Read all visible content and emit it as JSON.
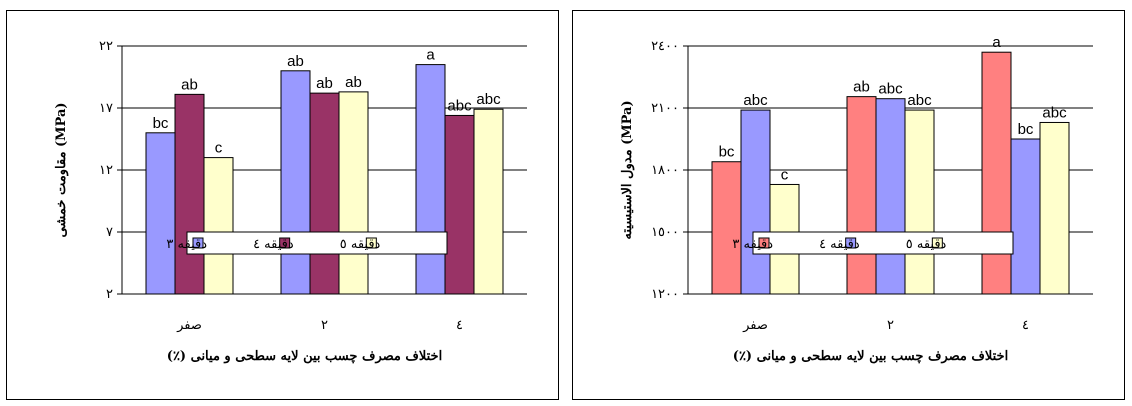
{
  "chart_data": [
    {
      "type": "bar",
      "ylabel": "مقاومت خمشی (MPa)",
      "xlabel": "اختلاف مصرف چسب بین لایه سطحی و میانی (٪)",
      "categories": [
        "صفر",
        "٢",
        "٤"
      ],
      "ylim": [
        2,
        22
      ],
      "yticks": [
        2,
        7,
        12,
        17,
        22
      ],
      "ytick_labels": [
        "٢",
        "٧",
        "١٢",
        "١٧",
        "٢٢"
      ],
      "grid": true,
      "legend_placement": "center",
      "series": [
        {
          "name": "دقیقه ٣",
          "color": "#9999ff",
          "values": [
            15.0,
            20.0,
            20.5
          ],
          "labels": [
            "bc",
            "ab",
            "a"
          ]
        },
        {
          "name": "دقیقه ٤",
          "color": "#993366",
          "values": [
            18.1,
            18.2,
            16.4
          ],
          "labels": [
            "ab",
            "ab",
            "abc"
          ]
        },
        {
          "name": "دقیقه ٥",
          "color": "#ffffcc",
          "values": [
            13.0,
            18.3,
            16.9
          ],
          "labels": [
            "c",
            "ab",
            "abc"
          ]
        }
      ]
    },
    {
      "type": "bar",
      "ylabel": "مدول الاستیسیته (MPa)",
      "xlabel": "اختلاف مصرف چسب بین لایه سطحی و میانی (٪)",
      "categories": [
        "صفر",
        "٢",
        "٤"
      ],
      "ylim": [
        1200,
        2400
      ],
      "yticks": [
        1200,
        1500,
        1800,
        2100,
        2400
      ],
      "ytick_labels": [
        "١٢٠٠",
        "١٥٠٠",
        "١٨٠٠",
        "٢١٠٠",
        "٢٤٠٠"
      ],
      "grid": true,
      "legend_placement": "center",
      "series": [
        {
          "name": "دقیقه ٣",
          "color": "#ff8080",
          "values": [
            1840,
            2155,
            2370
          ],
          "labels": [
            "bc",
            "ab",
            "a"
          ]
        },
        {
          "name": "دقیقه ٤",
          "color": "#9999ff",
          "values": [
            2090,
            2145,
            1950
          ],
          "labels": [
            "abc",
            "abc",
            "bc"
          ]
        },
        {
          "name": "دقیقه ٥",
          "color": "#ffffcc",
          "values": [
            1730,
            2090,
            2030
          ],
          "labels": [
            "c",
            "abc",
            "abc"
          ]
        }
      ]
    }
  ]
}
